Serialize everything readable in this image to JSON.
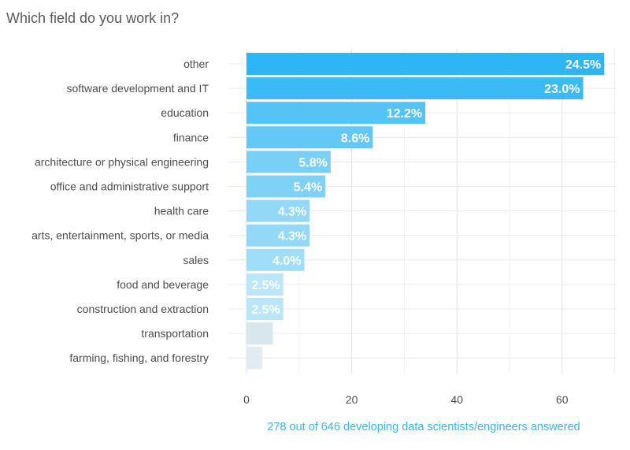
{
  "title": "Which field do you work in?",
  "caption": "278 out of 646 developing data scientists/engineers answered",
  "chart_data": {
    "type": "bar",
    "orientation": "horizontal",
    "title": "Which field do you work in?",
    "xlabel": "",
    "ylabel": "",
    "xlim": [
      0,
      70
    ],
    "xticks": [
      0,
      20,
      40,
      60
    ],
    "grid": true,
    "categories": [
      "other",
      "software development and IT",
      "education",
      "finance",
      "architecture or physical engineering",
      "office and administrative support",
      "health care",
      "arts, entertainment, sports, or media",
      "sales",
      "food and beverage",
      "construction and extraction",
      "transportation",
      "farming, fishing, and forestry"
    ],
    "values": [
      68,
      64,
      34,
      24,
      16,
      15,
      12,
      12,
      11,
      7,
      7,
      5,
      3
    ],
    "data_labels": [
      "24.5%",
      "23.0%",
      "12.2%",
      "8.6%",
      "5.8%",
      "5.4%",
      "4.3%",
      "4.3%",
      "4.0%",
      "2.5%",
      "2.5%",
      "",
      ""
    ],
    "colors": [
      "#2eb5f5",
      "#3bbaf5",
      "#55c3f6",
      "#64c8f6",
      "#79d0f6",
      "#7fd2f6",
      "#93d9f7",
      "#93d9f7",
      "#a0ddf7",
      "#b9e7f9",
      "#b9e7f9",
      "#d8e6ee",
      "#e2ebf0"
    ]
  }
}
